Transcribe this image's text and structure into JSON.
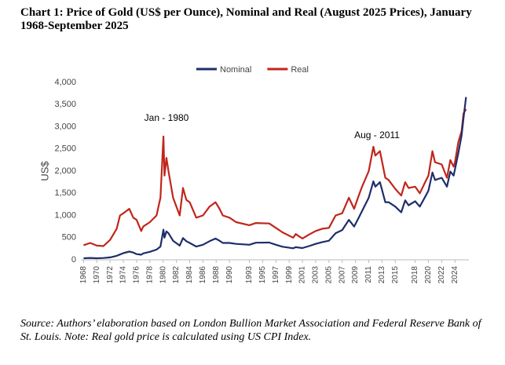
{
  "chart_data": {
    "type": "line",
    "title": "Chart 1: Price of Gold (US$ per Ounce), Nominal and Real (August 2025 Prices), January 1968-September 2025",
    "y_label": "US$",
    "annotations": [
      "Jan - 1980",
      "Aug - 2011"
    ],
    "source": "Source: Authors’ elaboration based on London Bullion Market Association and Federal Reserve Bank of St. Louis. Note: Real gold price is calculated using US CPI Index.",
    "legend": "top",
    "grid": false,
    "x": [
      1968,
      1969,
      1970,
      1971,
      1972,
      1973,
      1973.5,
      1974,
      1974.9,
      1975.5,
      1976,
      1976.7,
      1977,
      1978,
      1979,
      1979.6,
      1980.05,
      1980.2,
      1980.5,
      1980.8,
      1981.5,
      1982.5,
      1983,
      1983.5,
      1984,
      1985,
      1986,
      1987,
      1987.9,
      1988.5,
      1989,
      1990,
      1991,
      1993,
      1994,
      1996,
      1997,
      1998,
      1999.6,
      2000,
      2001,
      2002,
      2003,
      2004,
      2005,
      2006,
      2007,
      2008,
      2008.8,
      2009.5,
      2010,
      2011,
      2011.7,
      2012,
      2012.7,
      2013.5,
      2014,
      2015,
      2015.9,
      2016.5,
      2017,
      2018,
      2018.7,
      2019.5,
      2020,
      2020.6,
      2021,
      2022,
      2022.8,
      2023.3,
      2023.8,
      2024,
      2024.5,
      2025,
      2025.3,
      2025.67
    ],
    "series": [
      {
        "name": "Nominal",
        "color": "#1f2d6b",
        "values": [
          35,
          42,
          36,
          40,
          55,
          90,
          120,
          150,
          185,
          165,
          130,
          115,
          145,
          180,
          230,
          300,
          680,
          500,
          640,
          600,
          430,
          320,
          490,
          420,
          380,
          300,
          340,
          420,
          480,
          430,
          380,
          380,
          360,
          340,
          385,
          390,
          340,
          295,
          260,
          285,
          265,
          310,
          360,
          400,
          430,
          600,
          670,
          900,
          750,
          950,
          1100,
          1400,
          1770,
          1650,
          1750,
          1300,
          1300,
          1200,
          1070,
          1340,
          1230,
          1320,
          1200,
          1420,
          1560,
          1970,
          1800,
          1850,
          1650,
          1990,
          1900,
          2040,
          2400,
          2800,
          3200,
          3670
        ]
      },
      {
        "name": "Real",
        "color": "#c0261b",
        "values": [
          330,
          380,
          320,
          310,
          450,
          700,
          1000,
          1050,
          1150,
          950,
          900,
          650,
          750,
          850,
          1000,
          1400,
          2780,
          1900,
          2300,
          2000,
          1400,
          1000,
          1620,
          1350,
          1300,
          950,
          1000,
          1200,
          1300,
          1150,
          1000,
          950,
          850,
          780,
          830,
          820,
          720,
          620,
          500,
          580,
          480,
          570,
          650,
          700,
          720,
          1000,
          1050,
          1400,
          1150,
          1450,
          1650,
          2000,
          2550,
          2350,
          2450,
          1850,
          1800,
          1600,
          1450,
          1750,
          1620,
          1650,
          1500,
          1750,
          1900,
          2450,
          2200,
          2150,
          1850,
          2250,
          2100,
          2200,
          2650,
          2900,
          3300,
          3400
        ]
      }
    ],
    "xlim": [
      1967.6,
      2026.1
    ],
    "xticks": [
      1968,
      1970,
      1972,
      1974,
      1976,
      1978,
      1980,
      1982,
      1984,
      1986,
      1988,
      1990,
      1993,
      1995,
      1997,
      1999,
      2001,
      2003,
      2005,
      2007,
      2009,
      2011,
      2013,
      2015,
      2018,
      2020,
      2022,
      2024
    ],
    "ylim": [
      0,
      4000
    ],
    "yticks": [
      0,
      500,
      {
        "value": 1000,
        "label": "1,000"
      },
      {
        "value": 1500,
        "label": "1,500"
      },
      {
        "value": 2000,
        "label": "2,000"
      },
      {
        "value": 2500,
        "label": "2,500"
      },
      {
        "value": 3000,
        "label": "3,000"
      },
      {
        "value": 3500,
        "label": "3,500"
      },
      {
        "value": 4000,
        "label": "4,000"
      }
    ]
  }
}
